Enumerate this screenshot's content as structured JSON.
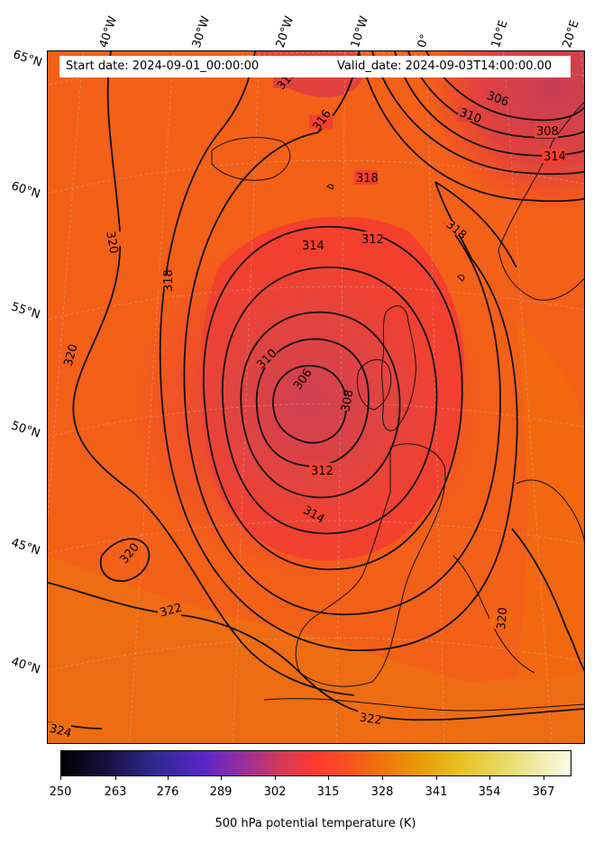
{
  "header": {
    "start_date": "Start date: 2024-09-01_00:00:00",
    "valid_date": "Valid_date: 2024-09-03T14:00:00.00"
  },
  "lon_labels": [
    "40°W",
    "30°W",
    "20°W",
    "10°W",
    "0°",
    "10°E",
    "20°E"
  ],
  "lat_labels": [
    "65°N",
    "60°N",
    "55°N",
    "50°N",
    "45°N",
    "40°N"
  ],
  "contour_labels": {
    "c306": "306",
    "c308": "308",
    "c310": "310",
    "c312": "312",
    "c314": "314",
    "c316": "316",
    "c318": "318",
    "c320": "320",
    "c322": "322",
    "c324": "324"
  },
  "colorbar": {
    "label": "500 hPa potential temperature (K)",
    "ticks": [
      "250",
      "263",
      "276",
      "289",
      "302",
      "315",
      "328",
      "341",
      "354",
      "367"
    ]
  },
  "colors": {
    "background": "#f45f1e",
    "low_core": "#d2414e",
    "mid_red": "#f4402d",
    "warm_orange": "#ee6e12",
    "contour": "#000000"
  }
}
